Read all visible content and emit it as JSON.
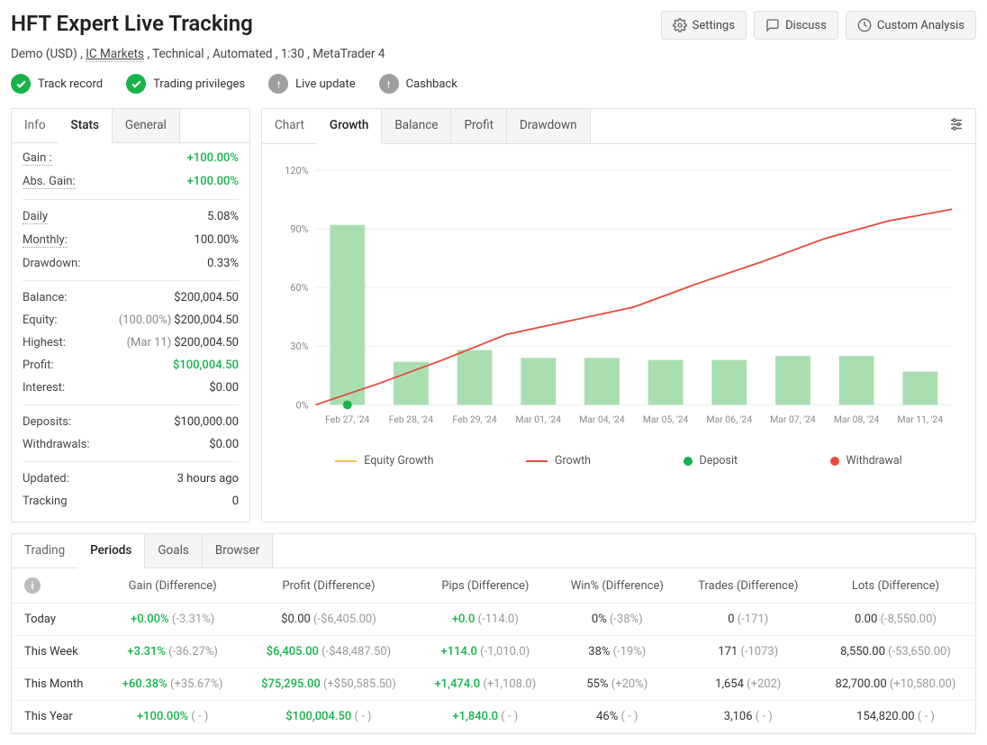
{
  "header": {
    "title": "HFT Expert Live Tracking",
    "subtitle_parts": [
      "Demo (USD)",
      "IC Markets",
      "Technical",
      "Automated",
      "1:30",
      "MetaTrader 4"
    ],
    "buttons": {
      "settings": "Settings",
      "discuss": "Discuss",
      "custom": "Custom Analysis"
    }
  },
  "badges": [
    {
      "label": "Track record",
      "status": "green"
    },
    {
      "label": "Trading privileges",
      "status": "green"
    },
    {
      "label": "Live update",
      "status": "gray"
    },
    {
      "label": "Cashback",
      "status": "gray"
    }
  ],
  "stats_tabs": {
    "info": "Info",
    "stats": "Stats",
    "general": "General",
    "active": "Stats"
  },
  "stats": {
    "gain": {
      "label": "Gain :",
      "value": "+100.00%"
    },
    "abs_gain": {
      "label": "Abs. Gain:",
      "value": "+100.00%"
    },
    "daily": {
      "label": "Daily",
      "value": "5.08%"
    },
    "monthly": {
      "label": "Monthly:",
      "value": "100.00%"
    },
    "drawdown": {
      "label": "Drawdown:",
      "value": "0.33%"
    },
    "balance": {
      "label": "Balance:",
      "value": "$200,004.50"
    },
    "equity": {
      "label": "Equity:",
      "sub": "(100.00%)",
      "value": "$200,004.50"
    },
    "highest": {
      "label": "Highest:",
      "sub": "(Mar 11)",
      "value": "$200,004.50"
    },
    "profit": {
      "label": "Profit:",
      "value": "$100,004.50"
    },
    "interest": {
      "label": "Interest:",
      "value": "$0.00"
    },
    "deposits": {
      "label": "Deposits:",
      "value": "$100,000.00"
    },
    "withdrawals": {
      "label": "Withdrawals:",
      "value": "$0.00"
    },
    "updated": {
      "label": "Updated:",
      "value": "3 hours ago"
    },
    "tracking": {
      "label": "Tracking",
      "value": "0"
    }
  },
  "chart_tabs": {
    "chart": "Chart",
    "growth": "Growth",
    "balance": "Balance",
    "profit": "Profit",
    "drawdown": "Drawdown",
    "active": "Growth"
  },
  "chart": {
    "type": "bar+line",
    "y_axis": {
      "min": 0,
      "max": 120,
      "ticks": [
        0,
        30,
        60,
        90,
        120
      ],
      "tick_labels": [
        "0%",
        "30%",
        "60%",
        "90%",
        "120%"
      ]
    },
    "x_labels": [
      "Feb 27, '24",
      "Feb 28, '24",
      "Feb 29, '24",
      "Mar 01, '24",
      "Mar 04, '24",
      "Mar 05, '24",
      "Mar 06, '24",
      "Mar 07, '24",
      "Mar 08, '24",
      "Mar 11, '24"
    ],
    "bar_values": [
      92,
      22,
      28,
      24,
      24,
      23,
      23,
      25,
      25,
      17
    ],
    "bar_color": "#a9dfb0",
    "line_values": [
      0,
      11,
      23,
      36,
      43,
      50,
      62,
      73,
      85,
      94,
      100
    ],
    "line_color": "#e8483b",
    "deposit_point": {
      "x_index": 0,
      "y": 0,
      "color": "#15b34a"
    },
    "grid_color": "#eeeeee",
    "axis_text_color": "#888888",
    "background": "#ffffff",
    "legend": [
      {
        "label": "Equity Growth",
        "type": "line",
        "color": "#f7c24b"
      },
      {
        "label": "Growth",
        "type": "line",
        "color": "#e8483b"
      },
      {
        "label": "Deposit",
        "type": "dot",
        "color": "#15b34a"
      },
      {
        "label": "Withdrawal",
        "type": "dot",
        "color": "#e8483b"
      }
    ]
  },
  "periods_tabs": {
    "trading": "Trading",
    "periods": "Periods",
    "goals": "Goals",
    "browser": "Browser",
    "active": "Periods"
  },
  "periods": {
    "columns": [
      "",
      "Gain (Difference)",
      "Profit (Difference)",
      "Pips (Difference)",
      "Win% (Difference)",
      "Trades (Difference)",
      "Lots (Difference)"
    ],
    "rows": [
      {
        "label": "Today",
        "gain_v": "+0.00%",
        "gain_d": "(-3.31%)",
        "profit_v": "$0.00",
        "profit_d": "(-$6,405.00)",
        "pips_v": "+0.0",
        "pips_d": "(-114.0)",
        "win_v": "0%",
        "win_d": "(-38%)",
        "trades_v": "0",
        "trades_d": "(-171)",
        "lots_v": "0.00",
        "lots_d": "(-8,550.00)"
      },
      {
        "label": "This Week",
        "gain_v": "+3.31%",
        "gain_d": "(-36.27%)",
        "profit_v": "$6,405.00",
        "profit_d": "(-$48,487.50)",
        "pips_v": "+114.0",
        "pips_d": "(-1,010.0)",
        "win_v": "38%",
        "win_d": "(-19%)",
        "trades_v": "171",
        "trades_d": "(-1073)",
        "lots_v": "8,550.00",
        "lots_d": "(-53,650.00)"
      },
      {
        "label": "This Month",
        "gain_v": "+60.38%",
        "gain_d": "(+35.67%)",
        "profit_v": "$75,295.00",
        "profit_d": "(+$50,585.50)",
        "pips_v": "+1,474.0",
        "pips_d": "(+1,108.0)",
        "win_v": "55%",
        "win_d": "(+20%)",
        "trades_v": "1,654",
        "trades_d": "(+202)",
        "lots_v": "82,700.00",
        "lots_d": "(+10,580.00)"
      },
      {
        "label": "This Year",
        "gain_v": "+100.00%",
        "gain_d": "( - )",
        "profit_v": "$100,004.50",
        "profit_d": "( - )",
        "pips_v": "+1,840.0",
        "pips_d": "( - )",
        "win_v": "46%",
        "win_d": "( - )",
        "trades_v": "3,106",
        "trades_d": "( - )",
        "lots_v": "154,820.00",
        "lots_d": "( - )"
      }
    ]
  }
}
